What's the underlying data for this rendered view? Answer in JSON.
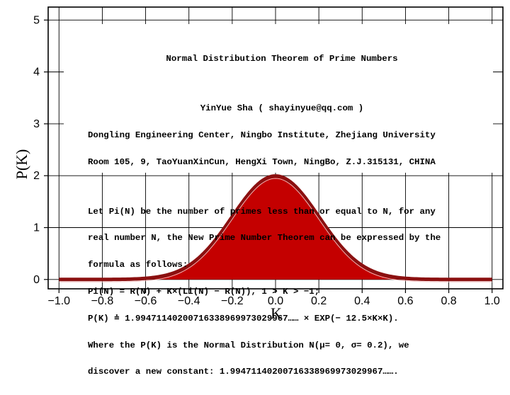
{
  "chart_data": {
    "type": "area",
    "xlabel": "K",
    "ylabel": "P(K)",
    "xlim": [
      -1.05,
      1.05
    ],
    "ylim": [
      -0.18,
      5.25
    ],
    "x_ticks": [
      "−1.0",
      "−0.8",
      "−0.6",
      "−0.4",
      "−0.2",
      "0.0",
      "0.2",
      "0.4",
      "0.6",
      "0.8",
      "1.0"
    ],
    "y_ticks": [
      "0",
      "1",
      "2",
      "3",
      "4",
      "5"
    ],
    "grid": true,
    "series": [
      {
        "distribution": "normal",
        "mean": 0,
        "sigma": 0.2,
        "peak": 1.9947,
        "x_range": [
          -1.0,
          1.0
        ],
        "fill_color": "#c40000",
        "line_color": "#8b1010"
      }
    ]
  },
  "annotation": {
    "title": "Normal Distribution Theorem of Prime Numbers",
    "author": "YinYue Sha ( shayinyue@qq.com )",
    "affiliation": "Dongling Engineering Center, Ningbo Institute, Zhejiang University",
    "address": "Room 105, 9, TaoYuanXinCun, HengXi Town, NingBo, Z.J.315131, CHINA",
    "body": [
      "Let Pi(N) be the number of primes less than or equal to N, for any",
      "real number N, the New Prime Number Theorem can be expressed by the",
      "formula as follows:",
      "Pi(N) = R(N) + K×(Li(N) − R(N)), 1 > K > −1;",
      "P(K) ≐ 1.99471140200716338969973029967…… × EXP(− 12.5×K×K).",
      "Where the P(K) is the Normal Distribution N(μ= 0, σ= 0.2), we",
      "discover a new constant: 1.99471140200716338969973029967……."
    ]
  }
}
